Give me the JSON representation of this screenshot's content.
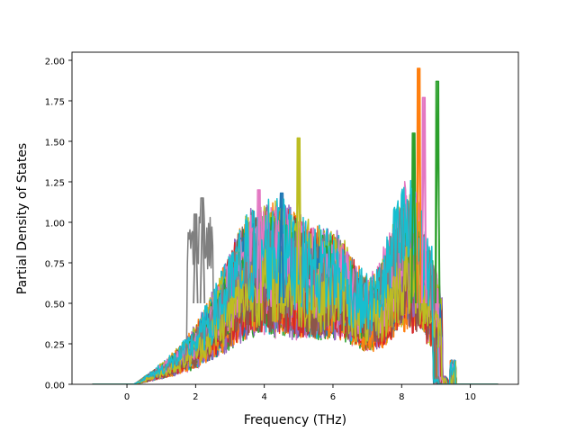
{
  "chart_data": {
    "type": "line",
    "xlabel": "Frequency (THz)",
    "ylabel": "Partial Density of States",
    "xlim": [
      -1.6,
      11.4
    ],
    "ylim": [
      0.0,
      2.05
    ],
    "xticks": [
      0,
      2,
      4,
      6,
      8,
      10
    ],
    "xtick_labels": [
      "0",
      "2",
      "4",
      "6",
      "8",
      "10"
    ],
    "yticks": [
      0.0,
      0.25,
      0.5,
      0.75,
      1.0,
      1.25,
      1.5,
      1.75,
      2.0
    ],
    "ytick_labels": [
      "0.00",
      "0.25",
      "0.50",
      "0.75",
      "1.00",
      "1.25",
      "1.50",
      "1.75",
      "2.00"
    ],
    "x_range": [
      -1.0,
      10.8
    ],
    "series_count": 60,
    "grid": false,
    "legend": "none",
    "colors": [
      "#1f77b4",
      "#ff7f0e",
      "#2ca02c",
      "#d62728",
      "#9467bd",
      "#8c564b",
      "#e377c2",
      "#7f7f7f",
      "#bcbd22",
      "#17becf"
    ],
    "features": [
      {
        "x": 2.0,
        "y": 1.05,
        "color": "#7f7f7f"
      },
      {
        "x": 2.2,
        "y": 1.15,
        "color": "#7f7f7f"
      },
      {
        "x": 5.0,
        "y": 1.52,
        "color": "#bcbd22"
      },
      {
        "x": 8.5,
        "y": 1.95,
        "color": "#ff7f0e"
      },
      {
        "x": 8.65,
        "y": 1.77,
        "color": "#e377c2"
      },
      {
        "x": 9.05,
        "y": 1.87,
        "color": "#2ca02c"
      },
      {
        "x": 8.35,
        "y": 1.55,
        "color": "#2ca02c"
      },
      {
        "x": 3.85,
        "y": 1.2,
        "color": "#e377c2"
      },
      {
        "x": 4.5,
        "y": 1.18,
        "color": "#1f77b4"
      }
    ]
  }
}
